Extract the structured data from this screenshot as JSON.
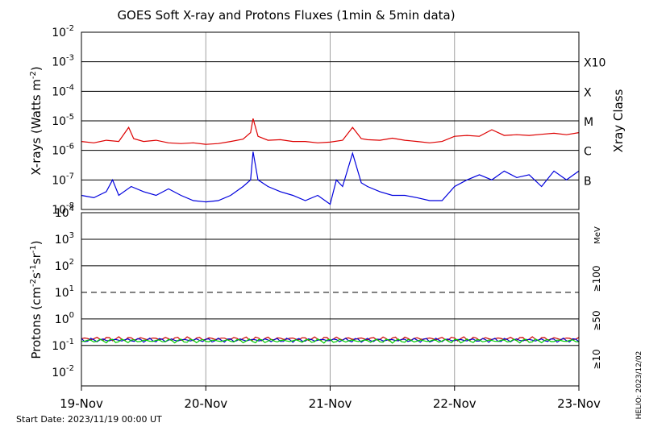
{
  "title": "GOES Soft X-ray and Protons Fluxes   (1min & 5min data)",
  "start_date_label": "Start Date: 2023/11/19 00:00 UT",
  "credit_label": "HELIO: 2023/12/02",
  "colors": {
    "xray_long": "#dd0000",
    "xray_short": "#0000dd",
    "proton_ge10": "#cc0000",
    "proton_ge50": "#0000cc",
    "proton_ge100": "#00cc00",
    "vgrid": "#a0a0a0"
  },
  "chart_data": [
    {
      "type": "line",
      "panel": "xray",
      "ylabel": "X-rays (Watts m^-2)",
      "ylabel_base": "X-rays (Watts m",
      "ylabel_sup": "-2",
      "ylabel_end": ")",
      "yscale": "log",
      "ylim": [
        1e-08,
        0.01
      ],
      "y_tick_labels": [
        "10^-8",
        "10^-7",
        "10^-6",
        "10^-5",
        "10^-4",
        "10^-3",
        "10^-2"
      ],
      "y_ticks": [
        {
          "base": "10",
          "exp": "-8"
        },
        {
          "base": "10",
          "exp": "-7"
        },
        {
          "base": "10",
          "exp": "-6"
        },
        {
          "base": "10",
          "exp": "-5"
        },
        {
          "base": "10",
          "exp": "-4"
        },
        {
          "base": "10",
          "exp": "-3"
        },
        {
          "base": "10",
          "exp": "-2"
        }
      ],
      "right_axis_title": "Xray Class",
      "class_labels": [
        "X10",
        "X",
        "M",
        "C",
        "B"
      ],
      "class_label_exponents": [
        -3,
        -4,
        -5,
        -6,
        -7
      ],
      "grid": "horizontal lines at 10^-7, 10^-6, 10^-5, 10^-4, 10^-3; vertical lines at each day",
      "x_range_days": [
        0,
        4
      ],
      "series": [
        {
          "color": "red",
          "x": [
            0,
            0.1,
            0.2,
            0.3,
            0.38,
            0.42,
            0.5,
            0.6,
            0.7,
            0.8,
            0.9,
            1.0,
            1.1,
            1.2,
            1.3,
            1.36,
            1.38,
            1.42,
            1.5,
            1.6,
            1.7,
            1.8,
            1.9,
            2.0,
            2.1,
            2.18,
            2.25,
            2.3,
            2.4,
            2.5,
            2.6,
            2.7,
            2.8,
            2.9,
            3.0,
            3.1,
            3.2,
            3.3,
            3.4,
            3.5,
            3.6,
            3.7,
            3.8,
            3.9,
            4.0
          ],
          "values": [
            2e-06,
            1.8e-06,
            2.2e-06,
            2e-06,
            6e-06,
            2.5e-06,
            2e-06,
            2.2e-06,
            1.8e-06,
            1.7e-06,
            1.8e-06,
            1.6e-06,
            1.7e-06,
            2e-06,
            2.4e-06,
            4e-06,
            1.2e-05,
            3e-06,
            2.2e-06,
            2.3e-06,
            2e-06,
            2e-06,
            1.8e-06,
            1.9e-06,
            2.2e-06,
            6e-06,
            2.5e-06,
            2.3e-06,
            2.2e-06,
            2.6e-06,
            2.2e-06,
            2e-06,
            1.8e-06,
            2e-06,
            3e-06,
            3.2e-06,
            3e-06,
            5e-06,
            3.2e-06,
            3.4e-06,
            3.2e-06,
            3.5e-06,
            3.8e-06,
            3.4e-06,
            4e-06
          ]
        },
        {
          "color": "blue",
          "x": [
            0,
            0.1,
            0.2,
            0.25,
            0.3,
            0.4,
            0.5,
            0.6,
            0.7,
            0.8,
            0.9,
            1.0,
            1.1,
            1.2,
            1.3,
            1.36,
            1.38,
            1.42,
            1.5,
            1.6,
            1.7,
            1.8,
            1.9,
            2.0,
            2.05,
            2.1,
            2.18,
            2.25,
            2.3,
            2.4,
            2.5,
            2.6,
            2.7,
            2.8,
            2.9,
            3.0,
            3.1,
            3.2,
            3.3,
            3.4,
            3.5,
            3.6,
            3.7,
            3.8,
            3.9,
            4.0
          ],
          "values": [
            3e-08,
            2.5e-08,
            4e-08,
            1e-07,
            3e-08,
            6e-08,
            4e-08,
            3e-08,
            5e-08,
            3e-08,
            2e-08,
            1.8e-08,
            2e-08,
            3e-08,
            6e-08,
            1e-07,
            9e-07,
            1e-07,
            6e-08,
            4e-08,
            3e-08,
            2e-08,
            3e-08,
            1.5e-08,
            1e-07,
            6e-08,
            8e-07,
            8e-08,
            6e-08,
            4e-08,
            3e-08,
            3e-08,
            2.5e-08,
            2e-08,
            2e-08,
            6e-08,
            1e-07,
            1.5e-07,
            1e-07,
            2e-07,
            1.2e-07,
            1.5e-07,
            6e-08,
            2e-07,
            1e-07,
            2e-07
          ]
        }
      ]
    },
    {
      "type": "line",
      "panel": "protons",
      "ylabel": "Protons (cm^-2 s^-1 sr^-1)",
      "ylabel_parts": [
        "Protons (cm",
        "-2",
        "s",
        "-1",
        "sr",
        "-1",
        ")"
      ],
      "yscale": "log",
      "ylim": [
        0.003,
        10000
      ],
      "y_tick_labels": [
        "10^-2",
        "10^-1",
        "10^0",
        "10^1",
        "10^2",
        "10^3",
        "10^4"
      ],
      "y_ticks": [
        {
          "base": "10",
          "exp": "-2"
        },
        {
          "base": "10",
          "exp": "-1"
        },
        {
          "base": "10",
          "exp": "0"
        },
        {
          "base": "10",
          "exp": "1"
        },
        {
          "base": "10",
          "exp": "2"
        },
        {
          "base": "10",
          "exp": "3"
        },
        {
          "base": "10",
          "exp": "4"
        }
      ],
      "unit_label": "MeV",
      "threshold_line": 10,
      "grid": "horizontal lines at 10^-1, 10^0, 10^2, 10^3; dashed line at 10^1",
      "x_range_days": [
        0,
        4
      ],
      "series": [
        {
          "name": "≥10",
          "color": "red",
          "level": 0.18
        },
        {
          "name": "≥50",
          "color": "blue",
          "level": 0.16
        },
        {
          "name": "≥100",
          "color": "green",
          "level": 0.15
        }
      ]
    }
  ],
  "x_axis": {
    "tick_labels": [
      "19-Nov",
      "20-Nov",
      "21-Nov",
      "22-Nov",
      "23-Nov"
    ],
    "tick_days": [
      0,
      1,
      2,
      3,
      4
    ]
  }
}
